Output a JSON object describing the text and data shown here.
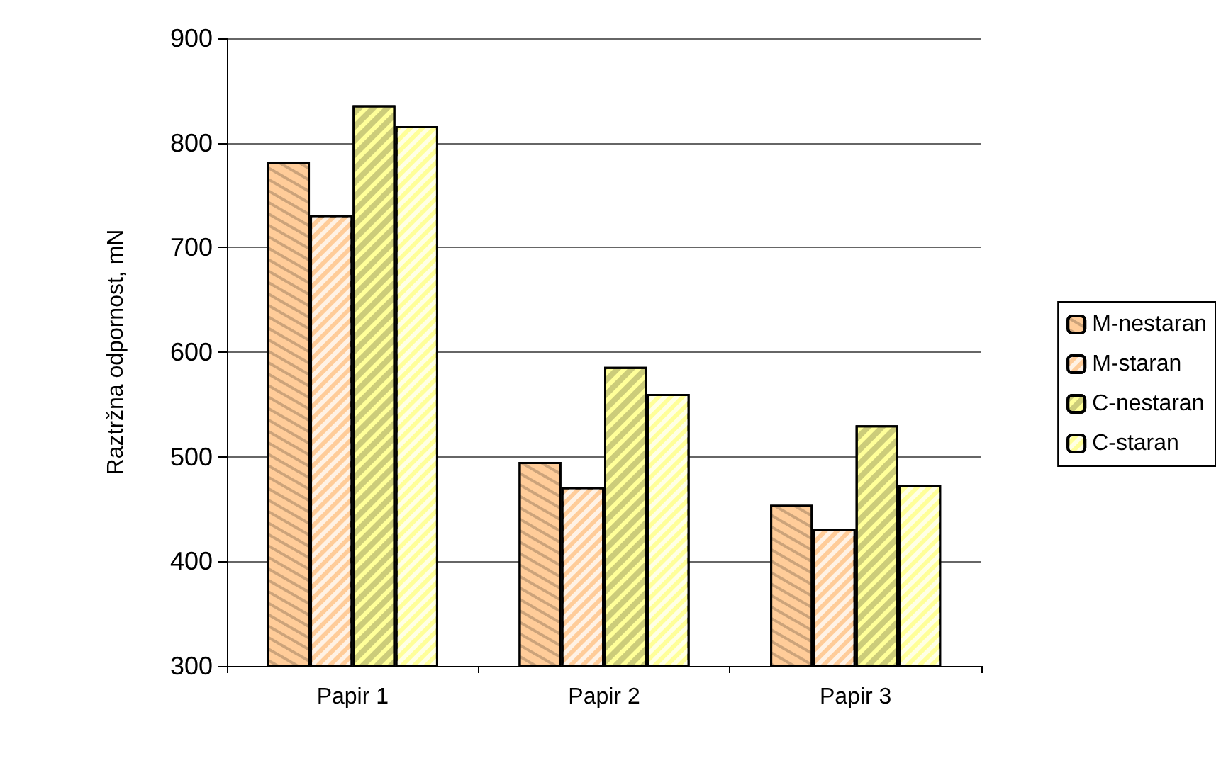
{
  "chart_data": {
    "type": "bar",
    "ylabel": "Raztržna odpornost, mN",
    "categories": [
      "Papir 1",
      "Papir 2",
      "Papir 3"
    ],
    "series": [
      {
        "name": "M-nestaran",
        "color": "#ffcc99",
        "values": [
          782,
          495,
          454
        ]
      },
      {
        "name": "M-staran",
        "color": "#ffcc99",
        "values": [
          731,
          471,
          431
        ]
      },
      {
        "name": "C-nestaran",
        "color": "#ffff99",
        "values": [
          836,
          586,
          530
        ]
      },
      {
        "name": "C-staran",
        "color": "#ffff99",
        "values": [
          816,
          560,
          473
        ]
      }
    ],
    "ylim": [
      300,
      900
    ],
    "yticks": [
      300,
      400,
      500,
      600,
      700,
      800,
      900
    ],
    "grid": "y",
    "legend": "right"
  }
}
